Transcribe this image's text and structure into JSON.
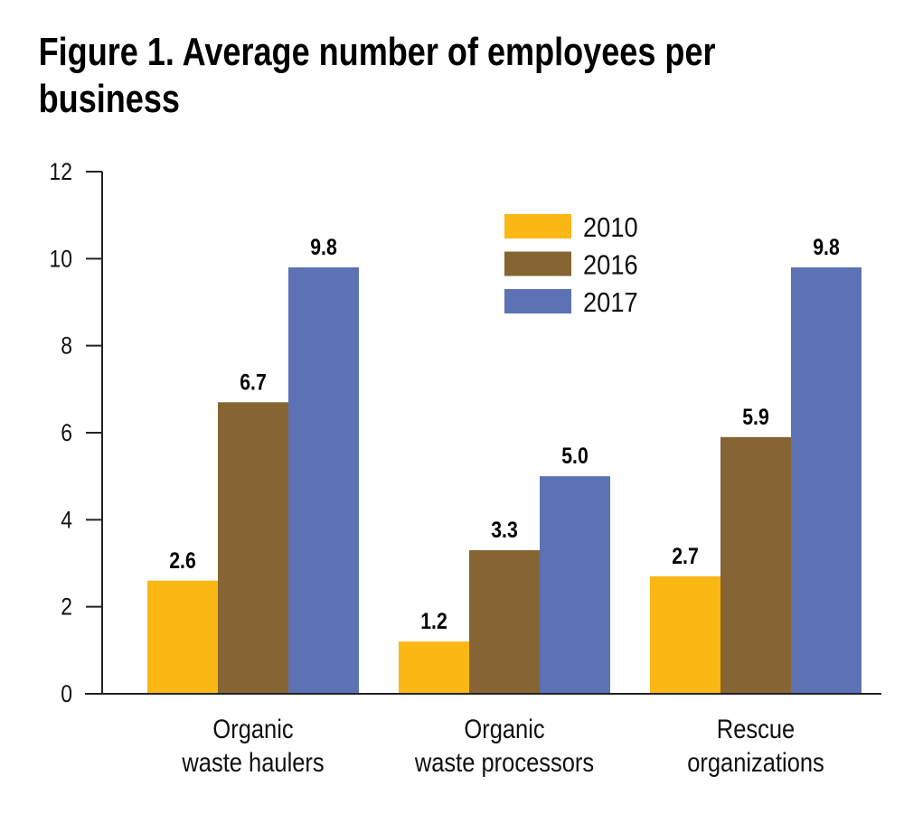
{
  "chart_data": {
    "type": "bar",
    "title": "Figure 1. Average number of employees per business",
    "title_lines": [
      "Figure 1. Average number of employees per",
      "business"
    ],
    "categories": [
      "Organic waste haulers",
      "Organic waste processors",
      "Rescue organizations"
    ],
    "category_lines": [
      [
        "Organic",
        "waste haulers"
      ],
      [
        "Organic",
        "waste processors"
      ],
      [
        "Rescue",
        "organizations"
      ]
    ],
    "series": [
      {
        "name": "2010",
        "color": "#FBB714",
        "values": [
          2.6,
          1.2,
          2.7
        ],
        "labels": [
          "2.6",
          "1.2",
          "2.7"
        ]
      },
      {
        "name": "2016",
        "color": "#866433",
        "values": [
          6.7,
          3.3,
          5.9
        ],
        "labels": [
          "6.7",
          "3.3",
          "5.9"
        ]
      },
      {
        "name": "2017",
        "color": "#5D71B5",
        "values": [
          9.8,
          5.0,
          9.8
        ],
        "labels": [
          "9.8",
          "5.0",
          "9.8"
        ]
      }
    ],
    "xlabel": "",
    "ylabel": "",
    "ylim": [
      0,
      12
    ],
    "yticks": [
      "0",
      "2",
      "4",
      "6",
      "8",
      "10",
      "12"
    ],
    "grid": false,
    "legend_position": "top-center"
  }
}
